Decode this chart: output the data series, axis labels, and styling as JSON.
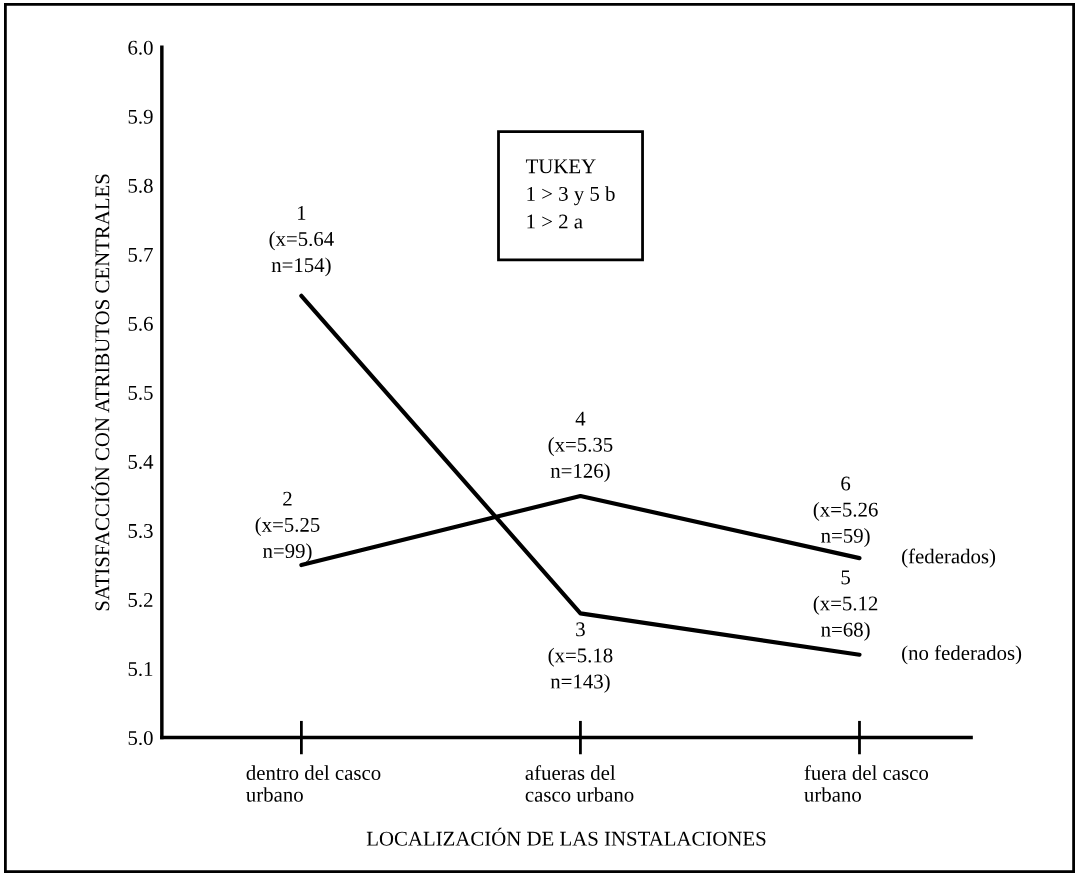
{
  "chart_data": {
    "type": "line",
    "xlabel": "LOCALIZACIÓN DE LAS INSTALACIONES",
    "ylabel": "SATISFACCIÓN CON ATRIBUTOS CENTRALES",
    "categories": [
      "dentro del casco\nurbano",
      "afueras del\ncasco urbano",
      "fuera del casco\nurbano"
    ],
    "series": [
      {
        "name": "(no federados)",
        "color": "#000000",
        "values": [
          5.64,
          5.18,
          5.12
        ]
      },
      {
        "name": "(federados)",
        "color": "#000000",
        "values": [
          5.25,
          5.35,
          5.26
        ]
      }
    ],
    "ylim": [
      5.0,
      6.0
    ],
    "yticks": [
      {
        "value": 5.0,
        "label": "5.0"
      },
      {
        "value": 5.1,
        "label": "5.1"
      },
      {
        "value": 5.2,
        "label": "5.2"
      },
      {
        "value": 5.3,
        "label": "5.3"
      },
      {
        "value": 5.4,
        "label": "5.4"
      },
      {
        "value": 5.5,
        "label": "5.5"
      },
      {
        "value": 5.6,
        "label": "5.6"
      },
      {
        "value": 5.7,
        "label": "5.7"
      },
      {
        "value": 5.8,
        "label": "5.8"
      },
      {
        "value": 5.9,
        "label": "5.9"
      },
      {
        "value": 6.0,
        "label": "6.0"
      }
    ],
    "grid": false,
    "legend": false,
    "marker": "none",
    "line_style": "solid",
    "annotations": [
      {
        "text": "1\n(x=5.64\nn=154)",
        "x": "dentro del casco\nurbano",
        "y": 5.64
      },
      {
        "text": "2\n(x=5.25\nn=99)",
        "x": "dentro del casco\nurbano",
        "y": 5.25
      },
      {
        "text": "3\n(x=5.18\nn=143)",
        "x": "afueras del\ncasco urbano",
        "y": 5.18
      },
      {
        "text": "4\n(x=5.35\nn=126)",
        "x": "afueras del\ncasco urbano",
        "y": 5.35
      },
      {
        "text": "5\n(x=5.12\nn=68)",
        "x": "fuera del casco\nurbano",
        "y": 5.12
      },
      {
        "text": "6\n(x=5.26\nn=59)",
        "x": "fuera del casco\nurbano",
        "y": 5.26
      },
      "TUKEY\n1 > 3 y 5 b\n1 > 2 a"
    ]
  }
}
